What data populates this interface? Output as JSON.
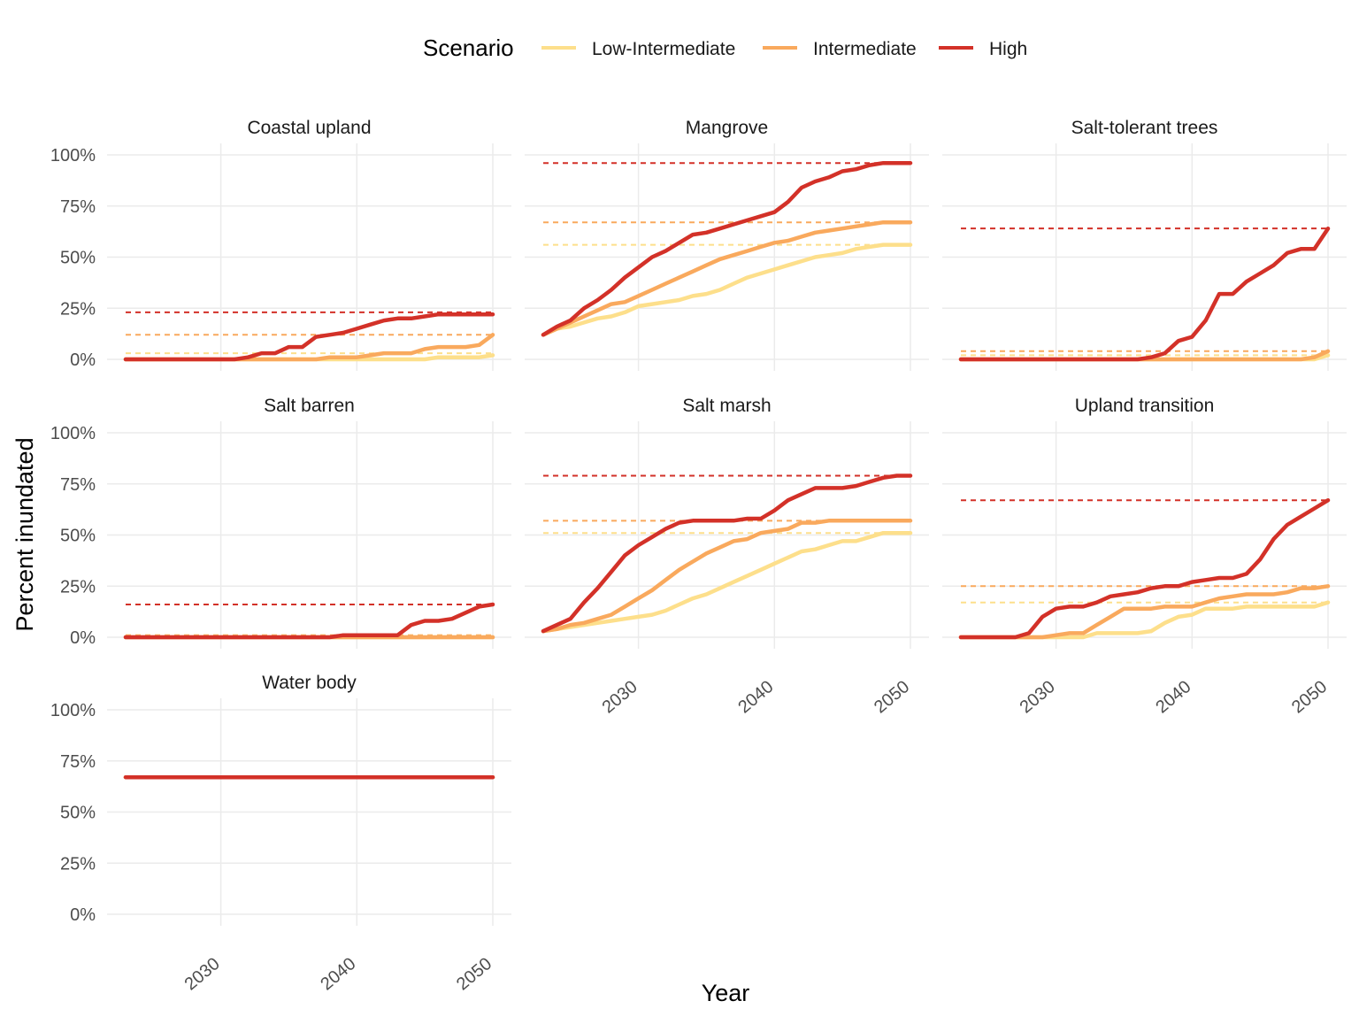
{
  "chart_data": {
    "type": "line",
    "layout": "faceted small multiples",
    "xlabel": "Year",
    "ylabel": "Percent inundated",
    "x_ticks": [
      2030,
      2040,
      2050
    ],
    "y_ticks": [
      "0%",
      "25%",
      "50%",
      "75%",
      "100%"
    ],
    "xlim": [
      2023,
      2050
    ],
    "ylim": [
      0,
      100
    ],
    "grid": true,
    "legend": {
      "title": "Scenario",
      "placement": "top",
      "entries": [
        {
          "name": "Low-Intermediate",
          "color": "#fddf8b"
        },
        {
          "name": "Intermediate",
          "color": "#f9a95d"
        },
        {
          "name": "High",
          "color": "#d33128"
        }
      ]
    },
    "x": [
      2023,
      2024,
      2025,
      2026,
      2027,
      2028,
      2029,
      2030,
      2031,
      2032,
      2033,
      2034,
      2035,
      2036,
      2037,
      2038,
      2039,
      2040,
      2041,
      2042,
      2043,
      2044,
      2045,
      2046,
      2047,
      2048,
      2049,
      2050
    ],
    "facets": [
      {
        "title": "Coastal upland",
        "reference_lines": {
          "Low-Intermediate": 3,
          "Intermediate": 12,
          "High": 23
        },
        "series": [
          {
            "name": "Low-Intermediate",
            "values": [
              0,
              0,
              0,
              0,
              0,
              0,
              0,
              0,
              0,
              0,
              0,
              0,
              0,
              0,
              0,
              0,
              0,
              0,
              0,
              0,
              0,
              0,
              0,
              1,
              1,
              1,
              1,
              2
            ]
          },
          {
            "name": "Intermediate",
            "values": [
              0,
              0,
              0,
              0,
              0,
              0,
              0,
              0,
              0,
              0,
              0,
              0,
              0,
              0,
              0,
              1,
              1,
              1,
              2,
              3,
              3,
              3,
              5,
              6,
              6,
              6,
              7,
              12
            ]
          },
          {
            "name": "High",
            "values": [
              0,
              0,
              0,
              0,
              0,
              0,
              0,
              0,
              0,
              1,
              3,
              3,
              6,
              6,
              11,
              12,
              13,
              15,
              17,
              19,
              20,
              20,
              21,
              22,
              22,
              22,
              22,
              22
            ]
          }
        ]
      },
      {
        "title": "Mangrove",
        "reference_lines": {
          "Low-Intermediate": 56,
          "Intermediate": 67,
          "High": 96
        },
        "series": [
          {
            "name": "Low-Intermediate",
            "values": [
              12,
              15,
              16,
              18,
              20,
              21,
              23,
              26,
              27,
              28,
              29,
              31,
              32,
              34,
              37,
              40,
              42,
              44,
              46,
              48,
              50,
              51,
              52,
              54,
              55,
              56,
              56,
              56
            ]
          },
          {
            "name": "Intermediate",
            "values": [
              12,
              15,
              18,
              21,
              24,
              27,
              28,
              31,
              34,
              37,
              40,
              43,
              46,
              49,
              51,
              53,
              55,
              57,
              58,
              60,
              62,
              63,
              64,
              65,
              66,
              67,
              67,
              67
            ]
          },
          {
            "name": "High",
            "values": [
              12,
              16,
              19,
              25,
              29,
              34,
              40,
              45,
              50,
              53,
              57,
              61,
              62,
              64,
              66,
              68,
              70,
              72,
              77,
              84,
              87,
              89,
              92,
              93,
              95,
              96,
              96,
              96
            ]
          }
        ]
      },
      {
        "title": "Salt-tolerant trees",
        "reference_lines": {
          "Low-Intermediate": 2,
          "Intermediate": 4,
          "High": 64
        },
        "series": [
          {
            "name": "Low-Intermediate",
            "values": [
              0,
              0,
              0,
              0,
              0,
              0,
              0,
              0,
              0,
              0,
              0,
              0,
              0,
              0,
              0,
              0,
              0,
              0,
              0,
              0,
              0,
              0,
              0,
              0,
              0,
              0,
              0,
              2
            ]
          },
          {
            "name": "Intermediate",
            "values": [
              0,
              0,
              0,
              0,
              0,
              0,
              0,
              0,
              0,
              0,
              0,
              0,
              0,
              0,
              0,
              0,
              0,
              0,
              0,
              0,
              0,
              0,
              0,
              0,
              0,
              0,
              1,
              4
            ]
          },
          {
            "name": "High",
            "values": [
              0,
              0,
              0,
              0,
              0,
              0,
              0,
              0,
              0,
              0,
              0,
              0,
              0,
              0,
              1,
              3,
              9,
              11,
              19,
              32,
              32,
              38,
              42,
              46,
              52,
              54,
              54,
              64
            ]
          }
        ]
      },
      {
        "title": "Salt barren",
        "reference_lines": {
          "Low-Intermediate": 1,
          "Intermediate": 1,
          "High": 16
        },
        "series": [
          {
            "name": "Low-Intermediate",
            "values": [
              0,
              0,
              0,
              0,
              0,
              0,
              0,
              0,
              0,
              0,
              0,
              0,
              0,
              0,
              0,
              0,
              0,
              0,
              0,
              0,
              0,
              0,
              0,
              0,
              0,
              0,
              0,
              0
            ]
          },
          {
            "name": "Intermediate",
            "values": [
              0,
              0,
              0,
              0,
              0,
              0,
              0,
              0,
              0,
              0,
              0,
              0,
              0,
              0,
              0,
              0,
              0,
              0,
              0,
              0,
              0,
              0,
              0,
              0,
              0,
              0,
              0,
              0
            ]
          },
          {
            "name": "High",
            "values": [
              0,
              0,
              0,
              0,
              0,
              0,
              0,
              0,
              0,
              0,
              0,
              0,
              0,
              0,
              0,
              0,
              1,
              1,
              1,
              1,
              1,
              6,
              8,
              8,
              9,
              12,
              15,
              16
            ]
          }
        ]
      },
      {
        "title": "Salt marsh",
        "reference_lines": {
          "Low-Intermediate": 51,
          "Intermediate": 57,
          "High": 79
        },
        "series": [
          {
            "name": "Low-Intermediate",
            "values": [
              3,
              4,
              5,
              6,
              7,
              8,
              9,
              10,
              11,
              13,
              16,
              19,
              21,
              24,
              27,
              30,
              33,
              36,
              39,
              42,
              43,
              45,
              47,
              47,
              49,
              51,
              51,
              51
            ]
          },
          {
            "name": "Intermediate",
            "values": [
              3,
              4,
              6,
              7,
              9,
              11,
              15,
              19,
              23,
              28,
              33,
              37,
              41,
              44,
              47,
              48,
              51,
              52,
              53,
              56,
              56,
              57,
              57,
              57,
              57,
              57,
              57,
              57
            ]
          },
          {
            "name": "High",
            "values": [
              3,
              6,
              9,
              17,
              24,
              32,
              40,
              45,
              49,
              53,
              56,
              57,
              57,
              57,
              57,
              58,
              58,
              62,
              67,
              70,
              73,
              73,
              73,
              74,
              76,
              78,
              79,
              79
            ]
          }
        ]
      },
      {
        "title": "Upland transition",
        "reference_lines": {
          "Low-Intermediate": 17,
          "Intermediate": 25,
          "High": 67
        },
        "series": [
          {
            "name": "Low-Intermediate",
            "values": [
              0,
              0,
              0,
              0,
              0,
              0,
              0,
              0,
              0,
              0,
              2,
              2,
              2,
              2,
              3,
              7,
              10,
              11,
              14,
              14,
              14,
              15,
              15,
              15,
              15,
              15,
              15,
              17
            ]
          },
          {
            "name": "Intermediate",
            "values": [
              0,
              0,
              0,
              0,
              0,
              0,
              0,
              1,
              2,
              2,
              6,
              10,
              14,
              14,
              14,
              15,
              15,
              15,
              17,
              19,
              20,
              21,
              21,
              21,
              22,
              24,
              24,
              25
            ]
          },
          {
            "name": "High",
            "values": [
              0,
              0,
              0,
              0,
              0,
              2,
              10,
              14,
              15,
              15,
              17,
              20,
              21,
              22,
              24,
              25,
              25,
              27,
              28,
              29,
              29,
              31,
              38,
              48,
              55,
              59,
              63,
              67
            ]
          }
        ]
      },
      {
        "title": "Water body",
        "reference_lines": {
          "Low-Intermediate": 67,
          "Intermediate": 67,
          "High": 67
        },
        "series": [
          {
            "name": "Low-Intermediate",
            "values": [
              67,
              67,
              67,
              67,
              67,
              67,
              67,
              67,
              67,
              67,
              67,
              67,
              67,
              67,
              67,
              67,
              67,
              67,
              67,
              67,
              67,
              67,
              67,
              67,
              67,
              67,
              67,
              67
            ]
          },
          {
            "name": "Intermediate",
            "values": [
              67,
              67,
              67,
              67,
              67,
              67,
              67,
              67,
              67,
              67,
              67,
              67,
              67,
              67,
              67,
              67,
              67,
              67,
              67,
              67,
              67,
              67,
              67,
              67,
              67,
              67,
              67,
              67
            ]
          },
          {
            "name": "High",
            "values": [
              67,
              67,
              67,
              67,
              67,
              67,
              67,
              67,
              67,
              67,
              67,
              67,
              67,
              67,
              67,
              67,
              67,
              67,
              67,
              67,
              67,
              67,
              67,
              67,
              67,
              67,
              67,
              67
            ]
          }
        ]
      }
    ]
  }
}
